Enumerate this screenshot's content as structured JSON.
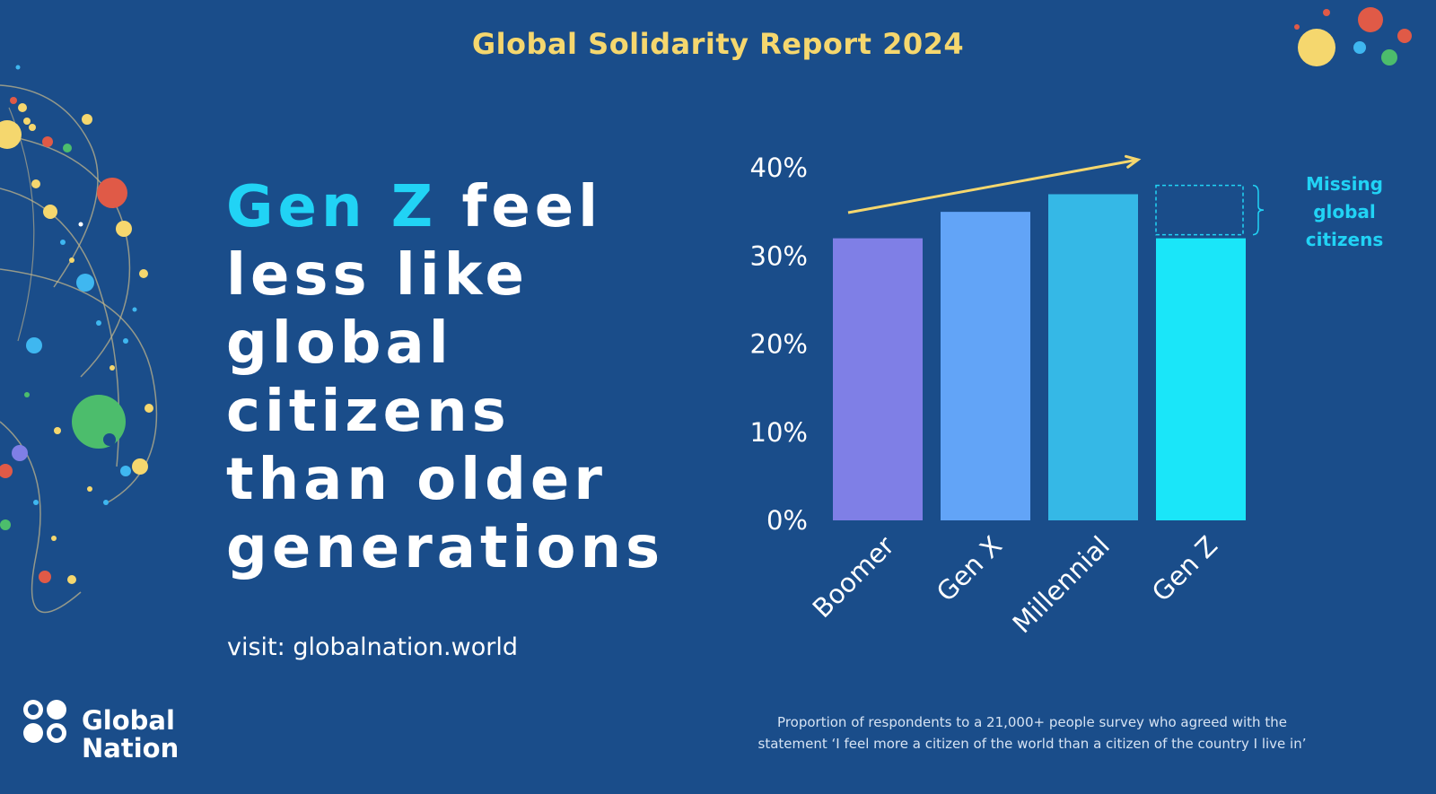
{
  "header": {
    "title": "Global Solidarity Report 2024"
  },
  "headline": {
    "accent": "Gen Z",
    "line1_rest": " feel",
    "line2": "less like",
    "line3": "global",
    "line4": "citizens",
    "line5": "than older",
    "line6": "generations"
  },
  "visit_text": "visit: globalnation.world",
  "logo": {
    "line1": "Global",
    "line2": "Nation"
  },
  "caption": {
    "line1": "Proportion of respondents to a 21,000+ people survey who agreed with the",
    "line2": "statement ‘I feel more a citizen of the world than a citizen of the country I live in’"
  },
  "chart_data": {
    "type": "bar",
    "categories": [
      "Boomer",
      "Gen X",
      "Millennial",
      "Gen Z"
    ],
    "values": [
      32,
      35,
      37,
      32
    ],
    "ylim": [
      0,
      40
    ],
    "ytick_labels": [
      "0%",
      "10%",
      "20%",
      "30%",
      "40%"
    ],
    "ytick_values": [
      0,
      10,
      20,
      30,
      40
    ],
    "grid": false,
    "bar_colors": [
      "#7f7fe6",
      "#62a4f7",
      "#35b8e6",
      "#1ae6f9"
    ],
    "annotation": {
      "label_lines": [
        "Missing",
        "global",
        "citizens"
      ],
      "category": "Gen Z",
      "from_value": 32,
      "to_value": 38,
      "color": "#21d3f5"
    },
    "trend_arrow": {
      "color": "#f5d76e"
    }
  },
  "colors": {
    "background": "#1a4d8a",
    "title": "#f5d76e",
    "accent": "#21d3f5",
    "text": "#ffffff"
  }
}
